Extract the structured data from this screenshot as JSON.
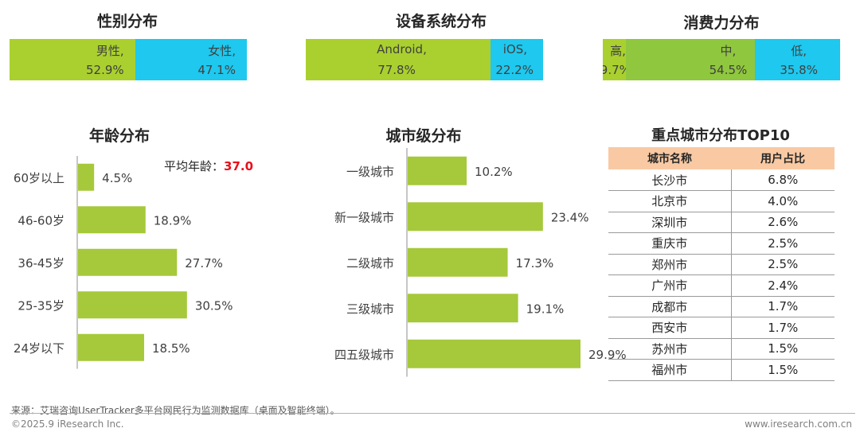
{
  "gender": {
    "title": "性别分布",
    "segments": [
      {
        "label": "男性,",
        "value": "52.9%",
        "share": 52.9,
        "color": "#aad02f"
      },
      {
        "label": "女性,",
        "value": "47.1%",
        "share": 47.1,
        "color": "#1ec8ee"
      }
    ]
  },
  "os": {
    "title": "设备系统分布",
    "segments": [
      {
        "label": "Android,",
        "value": "77.8%",
        "share": 77.8,
        "color": "#aad02f"
      },
      {
        "label": "iOS,",
        "value": "22.2%",
        "share": 22.2,
        "color": "#1ec8ee"
      }
    ]
  },
  "spending": {
    "title": "消费力分布",
    "segments": [
      {
        "label": "高,",
        "value": "9.7%",
        "share": 9.7,
        "color": "#aad02f"
      },
      {
        "label": "中,",
        "value": "54.5%",
        "share": 54.5,
        "color": "#8fc73e"
      },
      {
        "label": "低,",
        "value": "35.8%",
        "share": 35.8,
        "color": "#1ec8ee"
      }
    ]
  },
  "age": {
    "title": "年龄分布",
    "avg_label": "平均年龄：",
    "avg_value": "37.0"
  },
  "city_level": {
    "title": "城市级分布"
  },
  "top10": {
    "title": "重点城市分布TOP10",
    "headers": [
      "城市名称",
      "用户占比"
    ],
    "rows": [
      [
        "长沙市",
        "6.8%"
      ],
      [
        "北京市",
        "4.0%"
      ],
      [
        "深圳市",
        "2.6%"
      ],
      [
        "重庆市",
        "2.5%"
      ],
      [
        "郑州市",
        "2.5%"
      ],
      [
        "广州市",
        "2.4%"
      ],
      [
        "成都市",
        "1.7%"
      ],
      [
        "西安市",
        "1.7%"
      ],
      [
        "苏州市",
        "1.5%"
      ],
      [
        "福州市",
        "1.5%"
      ]
    ]
  },
  "chart_data": [
    {
      "type": "bar",
      "orientation": "horizontal",
      "title": "年龄分布",
      "categories": [
        "60岁以上",
        "46-60岁",
        "36-45岁",
        "25-35岁",
        "24岁以下"
      ],
      "values": [
        4.5,
        18.9,
        27.7,
        30.5,
        18.5
      ],
      "value_labels": [
        "4.5%",
        "18.9%",
        "27.7%",
        "30.5%",
        "18.5%"
      ],
      "xlim": [
        0,
        35
      ],
      "color": "#a5c93a",
      "grid": false
    },
    {
      "type": "bar",
      "orientation": "horizontal",
      "title": "城市级分布",
      "categories": [
        "一级城市",
        "新一级城市",
        "二级城市",
        "三级城市",
        "四五级城市"
      ],
      "values": [
        10.2,
        23.4,
        17.3,
        19.1,
        29.9
      ],
      "value_labels": [
        "10.2%",
        "23.4%",
        "17.3%",
        "19.1%",
        "29.9%"
      ],
      "xlim": [
        0,
        35
      ],
      "color": "#a5c93a",
      "grid": false
    }
  ],
  "footer": {
    "source": "来源：艾瑞咨询UserTracker多平台网民行为监测数据库（桌面及智能终端）。",
    "copyright": "©2025.9 iResearch Inc.",
    "website": "www.iresearch.com.cn"
  }
}
